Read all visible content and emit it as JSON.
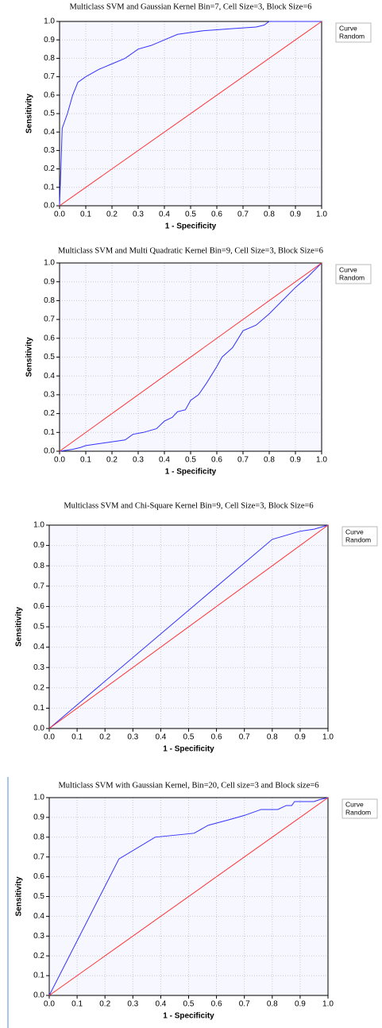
{
  "chart_data": [
    {
      "type": "line",
      "title": "Multiclass SVM and Gaussian  Kernel Bin=7, Cell Size=3, Block Size=6",
      "xlabel": "1 - Specificity",
      "ylabel": "Sensitivity",
      "grid": true,
      "legend": "right",
      "xlim": [
        0,
        1
      ],
      "ylim": [
        0,
        1
      ],
      "xticks": [
        {
          "value": 0,
          "label": "0.0"
        },
        0.1,
        0.2,
        0.3,
        0.4,
        0.5,
        0.6,
        0.7,
        0.8,
        0.9,
        {
          "value": 1,
          "label": "1.0"
        }
      ],
      "yticks": [
        {
          "value": 0,
          "label": "0.0"
        },
        0.1,
        0.2,
        0.3,
        0.4,
        0.5,
        0.6,
        0.7,
        0.8,
        0.9,
        {
          "value": 1,
          "label": "1.0"
        }
      ],
      "series": [
        {
          "name": "Curve",
          "color": "#3333ff",
          "x": [
            0,
            0.005,
            0.01,
            0.03,
            0.05,
            0.07,
            0.1,
            0.15,
            0.2,
            0.25,
            0.3,
            0.35,
            0.4,
            0.45,
            0.5,
            0.55,
            0.6,
            0.65,
            0.7,
            0.75,
            0.78,
            0.8,
            1
          ],
          "values": [
            0,
            0.2,
            0.42,
            0.5,
            0.6,
            0.67,
            0.7,
            0.74,
            0.77,
            0.8,
            0.85,
            0.87,
            0.9,
            0.93,
            0.94,
            0.95,
            0.955,
            0.96,
            0.965,
            0.97,
            0.98,
            1,
            1
          ]
        },
        {
          "name": "Random",
          "color": "#ff3333",
          "x": [
            0,
            1
          ],
          "values": [
            0,
            1
          ]
        }
      ]
    },
    {
      "type": "line",
      "title": "Multiclass SVM and Multi Quadratic  Kernel Bin=9, Cell Size=3, Block Size=6",
      "xlabel": "1 - Specificity",
      "ylabel": "Sensitivity",
      "grid": true,
      "legend": "right",
      "xlim": [
        0,
        1
      ],
      "ylim": [
        0,
        1
      ],
      "xticks": [
        {
          "value": 0,
          "label": "0.0"
        },
        0.1,
        0.2,
        0.3,
        0.4,
        0.5,
        0.6,
        0.7,
        0.8,
        0.9,
        {
          "value": 1,
          "label": "1.0"
        }
      ],
      "yticks": [
        {
          "value": 0,
          "label": "0.0"
        },
        0.1,
        0.2,
        0.3,
        0.4,
        0.5,
        0.6,
        0.7,
        0.8,
        0.9,
        {
          "value": 1,
          "label": "1.0"
        }
      ],
      "series": [
        {
          "name": "Curve",
          "color": "#3333ff",
          "x": [
            0,
            0.05,
            0.08,
            0.1,
            0.15,
            0.2,
            0.25,
            0.28,
            0.32,
            0.37,
            0.4,
            0.43,
            0.45,
            0.48,
            0.5,
            0.53,
            0.56,
            0.6,
            0.62,
            0.66,
            0.7,
            0.75,
            0.8,
            0.85,
            0.9,
            0.95,
            1
          ],
          "values": [
            0,
            0.01,
            0.02,
            0.03,
            0.04,
            0.05,
            0.06,
            0.09,
            0.1,
            0.12,
            0.16,
            0.18,
            0.21,
            0.22,
            0.27,
            0.3,
            0.36,
            0.45,
            0.5,
            0.55,
            0.64,
            0.67,
            0.73,
            0.8,
            0.87,
            0.93,
            1
          ]
        },
        {
          "name": "Random",
          "color": "#ff3333",
          "x": [
            0,
            1
          ],
          "values": [
            0,
            1
          ]
        }
      ]
    },
    {
      "type": "line",
      "title": "Multiclass SVM and Chi-Square Kernel Bin=9, Cell Size=3, Block Size=6",
      "xlabel": "1 - Specificity",
      "ylabel": "Sensitivity",
      "grid": true,
      "legend": "right",
      "xlim": [
        0,
        1
      ],
      "ylim": [
        0,
        1
      ],
      "xticks": [
        {
          "value": 0,
          "label": "0.0"
        },
        0.1,
        0.2,
        0.3,
        0.4,
        0.5,
        0.6,
        0.7,
        0.8,
        0.9,
        {
          "value": 1,
          "label": "1.0"
        }
      ],
      "yticks": [
        {
          "value": 0,
          "label": "0.0"
        },
        0.1,
        0.2,
        0.3,
        0.4,
        0.5,
        0.6,
        0.7,
        0.8,
        0.9,
        {
          "value": 1,
          "label": "1.0"
        }
      ],
      "series": [
        {
          "name": "Curve",
          "color": "#3333ff",
          "x": [
            0,
            0.8,
            0.9,
            0.95,
            1
          ],
          "values": [
            0,
            0.93,
            0.97,
            0.98,
            1
          ]
        },
        {
          "name": "Random",
          "color": "#ff3333",
          "x": [
            0,
            1
          ],
          "values": [
            0,
            1
          ]
        }
      ]
    },
    {
      "type": "line",
      "title": "Multiclass SVM with Gaussian Kernel, Bin=20, Cell size=3 and Block size=6",
      "xlabel": "1 - Specificity",
      "ylabel": "Sensitivity",
      "grid": true,
      "legend": "right",
      "xlim": [
        0,
        1
      ],
      "ylim": [
        0,
        1
      ],
      "xticks": [
        {
          "value": 0,
          "label": "0.0"
        },
        0.1,
        0.2,
        0.3,
        0.4,
        0.5,
        0.6,
        0.7,
        0.8,
        0.9,
        {
          "value": 1,
          "label": "1.0"
        }
      ],
      "yticks": [
        {
          "value": 0,
          "label": "0.0"
        },
        0.1,
        0.2,
        0.3,
        0.4,
        0.5,
        0.6,
        0.7,
        0.8,
        0.9,
        {
          "value": 1,
          "label": "1.0"
        }
      ],
      "series": [
        {
          "name": "Curve",
          "color": "#3333ff",
          "x": [
            0,
            0.25,
            0.38,
            0.45,
            0.52,
            0.57,
            0.65,
            0.7,
            0.76,
            0.82,
            0.85,
            0.87,
            0.88,
            0.95,
            0.97,
            1
          ],
          "values": [
            0,
            0.69,
            0.8,
            0.81,
            0.82,
            0.86,
            0.89,
            0.91,
            0.94,
            0.94,
            0.96,
            0.96,
            0.98,
            0.98,
            0.99,
            1
          ]
        },
        {
          "name": "Random",
          "color": "#ff3333",
          "x": [
            0,
            1
          ],
          "values": [
            0,
            1
          ]
        }
      ]
    }
  ]
}
